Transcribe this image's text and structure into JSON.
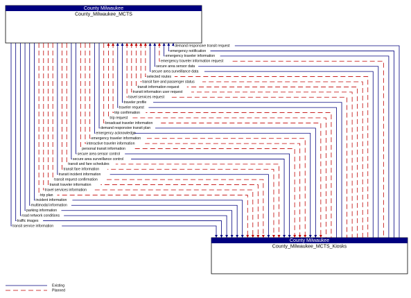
{
  "nodes": [
    {
      "group": "County Milwaukee",
      "label": "County_Milwaukee_MCTS"
    },
    {
      "group": "County Milwaukee",
      "label": "County_Milwaukee_MCTS_Kiosks"
    }
  ],
  "flows": [
    {
      "label": "demand responsive transit request",
      "status": "existing",
      "to": 0
    },
    {
      "label": "emergency notification",
      "status": "existing",
      "to": 0
    },
    {
      "label": "emergency traveler information",
      "status": "existing",
      "to": 0
    },
    {
      "label": "emergency traveler information request",
      "status": "planned",
      "to": 0
    },
    {
      "label": "secure area sensor data",
      "status": "existing",
      "to": 0
    },
    {
      "label": "secure area surveillance data",
      "status": "existing",
      "to": 0
    },
    {
      "label": "selected routes",
      "status": "planned",
      "to": 0
    },
    {
      "label": "transit fare and passenger status",
      "status": "planned",
      "to": 0
    },
    {
      "label": "transit information request",
      "status": "planned",
      "to": 0
    },
    {
      "label": "transit information user request",
      "status": "planned",
      "to": 0
    },
    {
      "label": "travel services request",
      "status": "planned",
      "to": 0
    },
    {
      "label": "traveler profile",
      "status": "existing",
      "to": 0
    },
    {
      "label": "traveler request",
      "status": "existing",
      "to": 0
    },
    {
      "label": "trip confirmation",
      "status": "planned",
      "to": 0
    },
    {
      "label": "trip request",
      "status": "planned",
      "to": 0
    },
    {
      "label": "broadcast traveler information",
      "status": "planned",
      "to": 1
    },
    {
      "label": "demand responsive transit plan",
      "status": "existing",
      "to": 1
    },
    {
      "label": "emergency acknowledge",
      "status": "existing",
      "to": 1
    },
    {
      "label": "emergency traveler information",
      "status": "planned",
      "to": 1
    },
    {
      "label": "interactive traveler information",
      "status": "planned",
      "to": 1
    },
    {
      "label": "personal transit information",
      "status": "planned",
      "to": 1
    },
    {
      "label": "secure area sensor control",
      "status": "existing",
      "to": 1
    },
    {
      "label": "secure area surveillance control",
      "status": "existing",
      "to": 1
    },
    {
      "label": "transit and fare schedules",
      "status": "planned",
      "to": 1
    },
    {
      "label": "transit fare information",
      "status": "planned",
      "to": 1
    },
    {
      "label": "transit incident information",
      "status": "existing",
      "to": 1
    },
    {
      "label": "transit request confirmation",
      "status": "planned",
      "to": 1
    },
    {
      "label": "transit traveler information",
      "status": "planned",
      "to": 1
    },
    {
      "label": "travel services information",
      "status": "planned",
      "to": 1
    },
    {
      "label": "trip plan",
      "status": "planned",
      "to": 1
    },
    {
      "label": "incident information",
      "status": "existing",
      "to": 1
    },
    {
      "label": "multimodal information",
      "status": "existing",
      "to": 1
    },
    {
      "label": "parking information",
      "status": "existing",
      "to": 1
    },
    {
      "label": "road network conditions",
      "status": "existing",
      "to": 1
    },
    {
      "label": "traffic images",
      "status": "existing",
      "to": 1
    },
    {
      "label": "transit service information",
      "status": "existing",
      "to": 1
    }
  ],
  "legend": [
    {
      "label": "Existing",
      "status": "existing"
    },
    {
      "label": "Planned",
      "status": "planned"
    }
  ]
}
